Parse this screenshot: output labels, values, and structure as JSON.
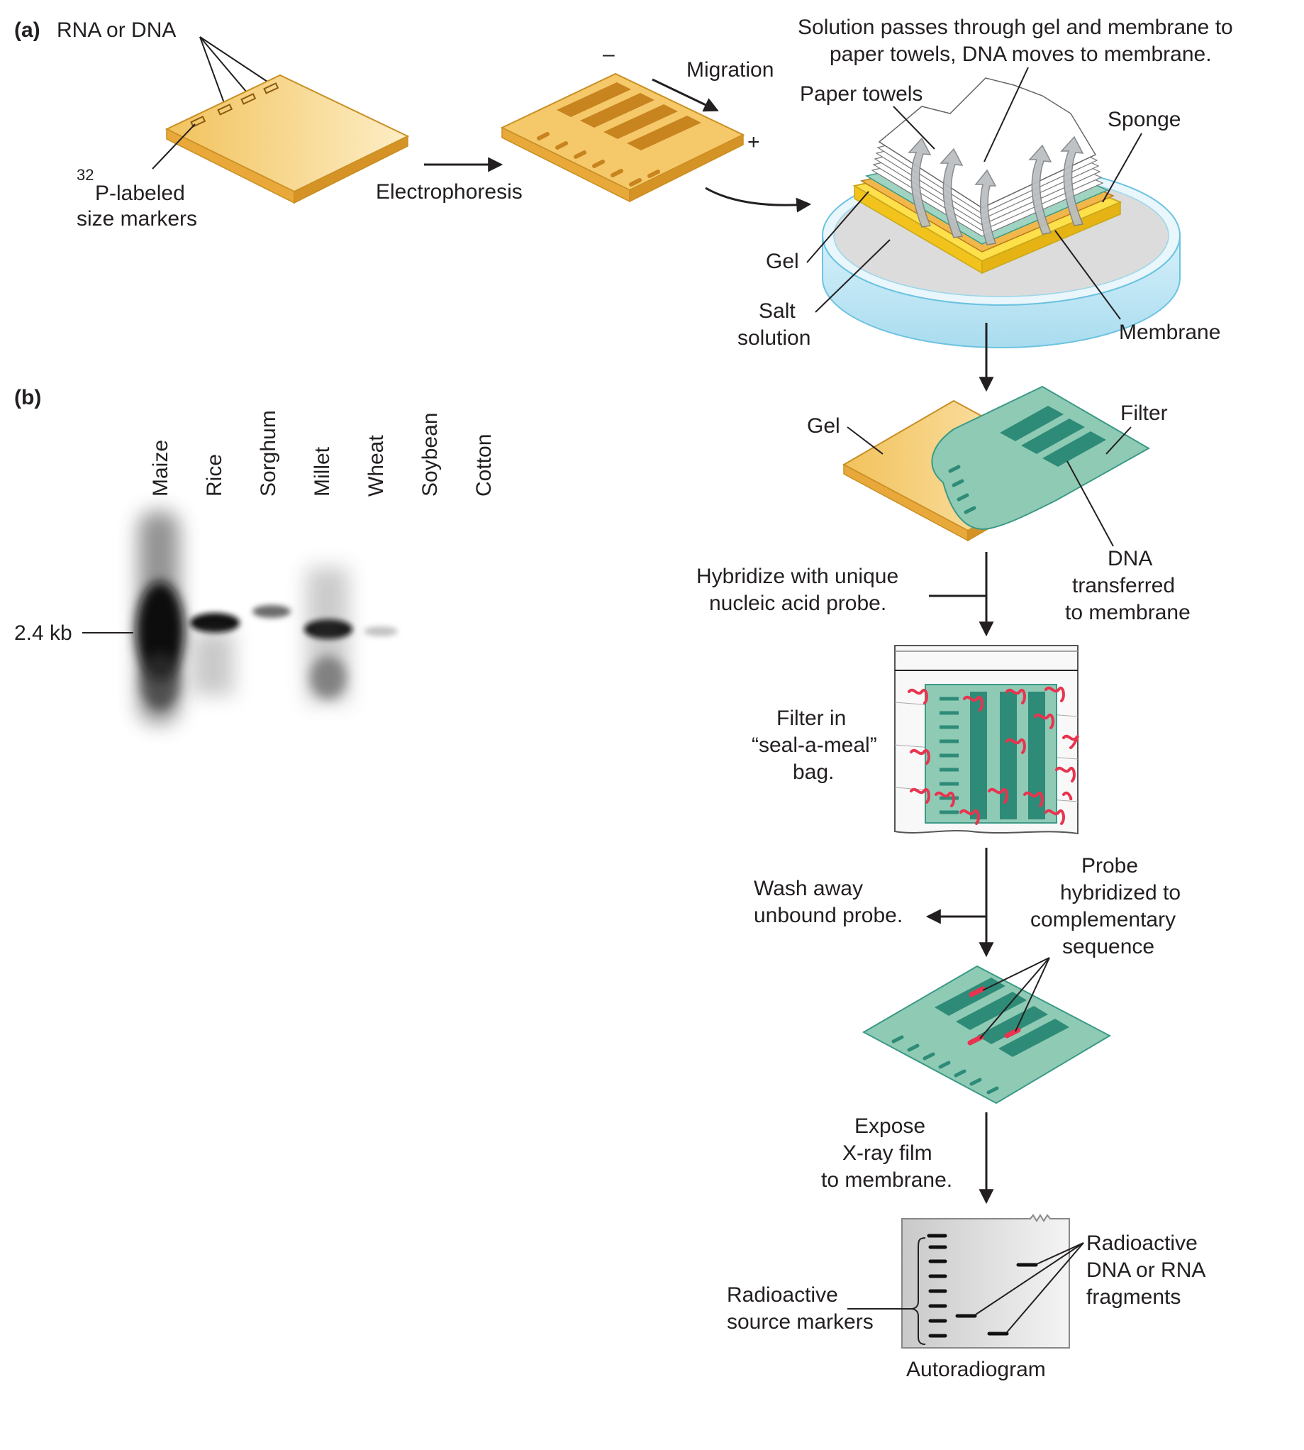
{
  "panel_a": {
    "label": "(a)",
    "rna_or_dna": "RNA or DNA",
    "size_markers_sup": "32",
    "size_markers_line1": "P-labeled",
    "size_markers_line2": "size markers",
    "electrophoresis": "Electrophoresis",
    "migration": "Migration",
    "minus": "–",
    "plus": "+",
    "solution_line1": "Solution passes through gel and membrane to",
    "solution_line2": "paper towels, DNA moves to membrane.",
    "paper_towels": "Paper towels",
    "sponge": "Sponge",
    "gel": "Gel",
    "salt_line1": "Salt",
    "salt_line2": "solution",
    "membrane": "Membrane",
    "gel2": "Gel",
    "filter": "Filter",
    "dna_line1": "DNA",
    "dna_line2": "transferred",
    "dna_line3": "to membrane",
    "hybridize_line1": "Hybridize with unique",
    "hybridize_line2": "nucleic acid probe.",
    "bag_line1": "Filter in",
    "bag_line2": "“seal-a-meal”",
    "bag_line3": "bag.",
    "wash_line1": "Wash away",
    "wash_line2": "unbound probe.",
    "probe_line1": "Probe",
    "probe_line2": "hybridized to",
    "probe_line3": "complementary",
    "probe_line4": "sequence",
    "expose_line1": "Expose",
    "expose_line2": "X-ray film",
    "expose_line3": "to membrane.",
    "radio_src_line1": "Radioactive",
    "radio_src_line2": "source markers",
    "radio_frag_line1": "Radioactive",
    "radio_frag_line2": "DNA or RNA",
    "radio_frag_line3": "fragments",
    "autoradiogram": "Autoradiogram"
  },
  "panel_b": {
    "label": "(b)",
    "marker": "2.4 kb",
    "lanes": [
      "Maize",
      "Rice",
      "Sorghum",
      "Millet",
      "Wheat",
      "Soybean",
      "Cotton"
    ]
  },
  "colors": {
    "gel": "#f5c96a",
    "gel_light": "#fbe6ad",
    "band": "#c7841f",
    "filter": "#8fcab5",
    "filter_band": "#2e8b77",
    "probe": "#e8344f",
    "dish": "#bfe6f5",
    "arrow": "#231f20"
  }
}
